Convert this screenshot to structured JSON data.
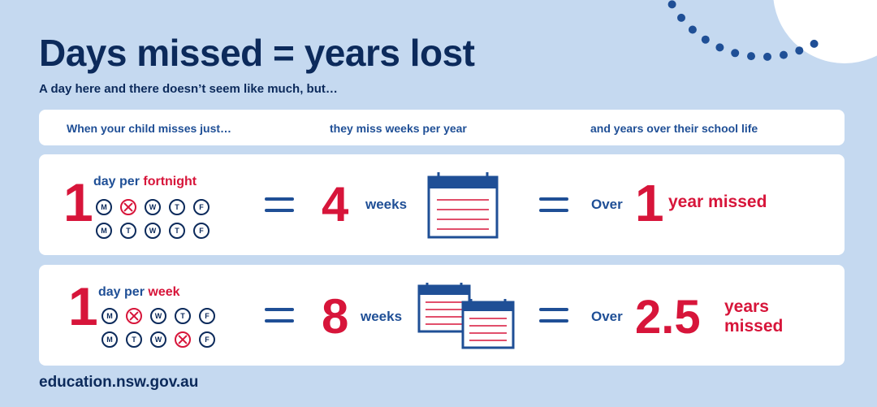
{
  "title": "Days missed = years lost",
  "subtitle": "A day here and there doesn’t seem like much, but…",
  "header": {
    "col1": "When your child misses just…",
    "col2": "they miss weeks per year",
    "col3": "and years over their school life"
  },
  "rows": [
    {
      "days_count": "1",
      "label_prefix": "day per",
      "label_highlight": "fortnight",
      "weeks_grid": [
        [
          {
            "d": "M",
            "missed": false
          },
          {
            "d": "T",
            "missed": true
          },
          {
            "d": "W",
            "missed": false
          },
          {
            "d": "T",
            "missed": false
          },
          {
            "d": "F",
            "missed": false
          }
        ],
        [
          {
            "d": "M",
            "missed": false
          },
          {
            "d": "T",
            "missed": false
          },
          {
            "d": "W",
            "missed": false
          },
          {
            "d": "T",
            "missed": false
          },
          {
            "d": "F",
            "missed": false
          }
        ]
      ],
      "weeks_count": "4",
      "weeks_label": "weeks",
      "over_label": "Over",
      "years_count": "1",
      "years_label": "year missed"
    },
    {
      "days_count": "1",
      "label_prefix": "day per",
      "label_highlight": "week",
      "weeks_grid": [
        [
          {
            "d": "M",
            "missed": false
          },
          {
            "d": "T",
            "missed": true
          },
          {
            "d": "W",
            "missed": false
          },
          {
            "d": "T",
            "missed": false
          },
          {
            "d": "F",
            "missed": false
          }
        ],
        [
          {
            "d": "M",
            "missed": false
          },
          {
            "d": "T",
            "missed": false
          },
          {
            "d": "W",
            "missed": false
          },
          {
            "d": "T",
            "missed": true
          },
          {
            "d": "F",
            "missed": false
          }
        ]
      ],
      "weeks_count": "8",
      "weeks_label": "weeks",
      "over_label": "Over",
      "years_count": "2.5",
      "years_label_line1": "years",
      "years_label_line2": "missed"
    }
  ],
  "footer": "education.nsw.gov.au",
  "colors": {
    "background": "#c5d9f0",
    "navy": "#0c2a5b",
    "red": "#d7153a",
    "blue": "#1f4f96",
    "card": "#ffffff"
  },
  "icons": {
    "calendar": "calendar-icon",
    "equals": "equals-icon",
    "missed_day": "cross-icon"
  }
}
